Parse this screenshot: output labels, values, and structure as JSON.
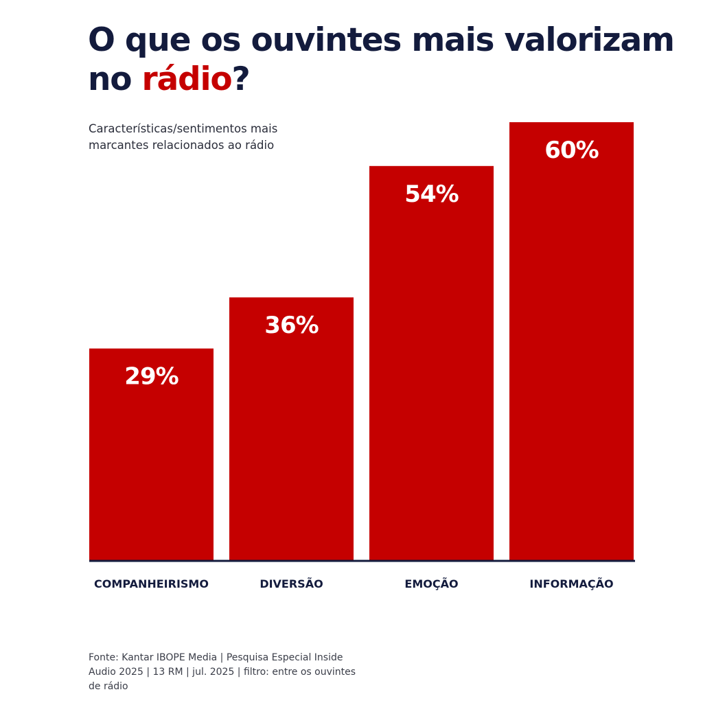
{
  "header": {
    "title_part1": "O que os ouvintes mais valorizam no ",
    "title_accent": "rádio",
    "title_end": "?",
    "subtitle": "Características/sentimentos mais marcantes relacionados ao rádio"
  },
  "colors": {
    "bar": "#c50000",
    "title": "#131b3d",
    "accent": "#c50000",
    "baseline": "#131b3d"
  },
  "chart_data": {
    "type": "bar",
    "categories": [
      "COMPANHEIRISMO",
      "DIVERSÃO",
      "EMOÇÃO",
      "INFORMAÇÃO"
    ],
    "values": [
      29,
      36,
      54,
      60
    ],
    "data_labels": [
      "29%",
      "36%",
      "54%",
      "60%"
    ],
    "ylim": [
      0,
      60
    ],
    "grid": false,
    "legend": "none"
  },
  "footer": {
    "source": "Fonte: Kantar IBOPE Media | Pesquisa Especial Inside Audio 2025 | 13 RM | jul. 2025 | filtro: entre os ouvintes de rádio"
  }
}
